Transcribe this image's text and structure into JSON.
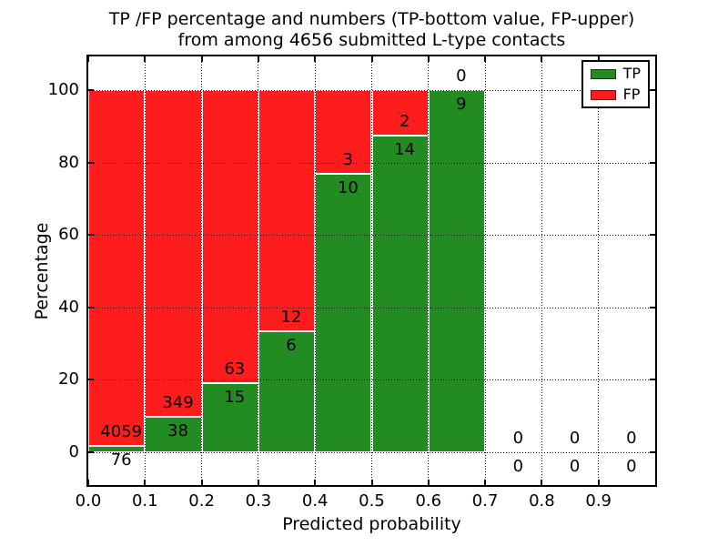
{
  "title": {
    "line1": "TP /FP percentage and numbers (TP-bottom value, FP-upper)",
    "line2": "from among 4656 submitted L-type contacts"
  },
  "chart_data": {
    "type": "bar",
    "stacked": true,
    "title": "TP /FP percentage and numbers (TP-bottom value, FP-upper) from among 4656 submitted L-type contacts",
    "xlabel": "Predicted probability",
    "ylabel": "Percentage",
    "x_tick_labels": [
      "0.0",
      "0.1",
      "0.2",
      "0.3",
      "0.4",
      "0.5",
      "0.6",
      "0.7",
      "0.8",
      "0.9"
    ],
    "y_ticks": [
      0,
      20,
      40,
      60,
      80,
      100
    ],
    "xlim": [
      0.0,
      1.0
    ],
    "ylim": [
      -9,
      109
    ],
    "grid": true,
    "bin_width": 0.1,
    "total_contacts": 4656,
    "unit": "bars stacked to 100% of bin total; labels are raw counts (TP bottom, FP upper)",
    "bins": [
      {
        "x0": 0.0,
        "x1": 0.1,
        "tp": 76,
        "fp": 4059,
        "tp_pct": 1.8
      },
      {
        "x0": 0.1,
        "x1": 0.2,
        "tp": 38,
        "fp": 349,
        "tp_pct": 9.8
      },
      {
        "x0": 0.2,
        "x1": 0.3,
        "tp": 15,
        "fp": 63,
        "tp_pct": 19.2
      },
      {
        "x0": 0.3,
        "x1": 0.4,
        "tp": 6,
        "fp": 12,
        "tp_pct": 33.3
      },
      {
        "x0": 0.4,
        "x1": 0.5,
        "tp": 10,
        "fp": 3,
        "tp_pct": 76.9
      },
      {
        "x0": 0.5,
        "x1": 0.6,
        "tp": 14,
        "fp": 2,
        "tp_pct": 87.5
      },
      {
        "x0": 0.6,
        "x1": 0.7,
        "tp": 9,
        "fp": 0,
        "tp_pct": 100.0
      },
      {
        "x0": 0.7,
        "x1": 0.8,
        "tp": 0,
        "fp": 0,
        "tp_pct": null
      },
      {
        "x0": 0.8,
        "x1": 0.9,
        "tp": 0,
        "fp": 0,
        "tp_pct": null
      },
      {
        "x0": 0.9,
        "x1": 1.0,
        "tp": 0,
        "fp": 0,
        "tp_pct": null
      }
    ],
    "series": [
      {
        "name": "TP",
        "color_key": "tp",
        "values": [
          76,
          38,
          15,
          6,
          10,
          14,
          9,
          0,
          0,
          0
        ]
      },
      {
        "name": "FP",
        "color_key": "fp",
        "values": [
          4059,
          349,
          63,
          12,
          3,
          2,
          0,
          0,
          0,
          0
        ]
      }
    ],
    "legend": {
      "position": "upper right",
      "entries": [
        {
          "label": "TP",
          "color_key": "tp"
        },
        {
          "label": "FP",
          "color_key": "fp"
        }
      ]
    }
  },
  "colors": {
    "tp": "#228b22",
    "fp": "#ff1c1c",
    "grid": "#000000",
    "axis": "#000000",
    "background": "#ffffff",
    "text": "#000000"
  }
}
